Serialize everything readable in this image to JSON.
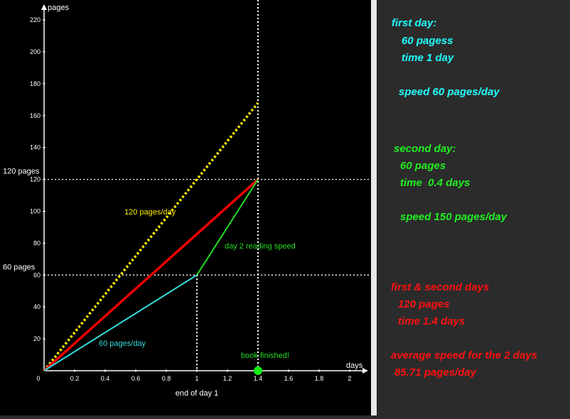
{
  "colors": {
    "background": "#000000",
    "axis": "#ffffff",
    "cyan": "#33dddd",
    "green": "#22dd22",
    "red": "#ee0000",
    "yellow": "#ffee00",
    "info_cyan": "#22ffff",
    "info_green": "#22ee22",
    "info_red": "#ff1111"
  },
  "chart_data": {
    "type": "line",
    "xlabel": "days",
    "ylabel": "pages",
    "xlim": [
      0,
      2.15
    ],
    "ylim": [
      0,
      225
    ],
    "x_ticks": [
      "0",
      "0.2",
      "0.4",
      "0.6",
      "0.8",
      "1",
      "1.2",
      "1.4",
      "1.6",
      "1.8",
      "2"
    ],
    "x_tick_values": [
      0,
      0.2,
      0.4,
      0.6,
      0.8,
      1,
      1.2,
      1.4,
      1.6,
      1.8,
      2
    ],
    "y_ticks": [
      "20",
      "40",
      "60",
      "80",
      "100",
      "120",
      "140",
      "160",
      "180",
      "200",
      "220"
    ],
    "y_tick_values": [
      20,
      40,
      60,
      80,
      100,
      120,
      140,
      160,
      180,
      200,
      220
    ],
    "series": [
      {
        "name": "60 pages/day",
        "color_key": "cyan",
        "style": "solid",
        "x": [
          0,
          1
        ],
        "y": [
          0,
          60
        ]
      },
      {
        "name": "day 2 reading speed",
        "color_key": "green",
        "style": "solid",
        "x": [
          1,
          1.4
        ],
        "y": [
          60,
          120
        ]
      },
      {
        "color_key": "red",
        "style": "solid",
        "x": [
          0,
          1.4
        ],
        "y": [
          0,
          120
        ]
      },
      {
        "name": "120 pages/day",
        "color_key": "yellow",
        "style": "dotted",
        "x": [
          0,
          1.4
        ],
        "y": [
          0,
          168
        ]
      }
    ],
    "reference_lines": {
      "horizontal": [
        {
          "y": 60,
          "label": "60 pages"
        },
        {
          "y": 120,
          "label": "120 pages"
        }
      ],
      "vertical": [
        {
          "x": 1,
          "label": "end of day 1"
        },
        {
          "x": 1.4
        }
      ]
    },
    "annotations": {
      "book_finished": {
        "x": 1.4,
        "y": 0,
        "label": "book finished!"
      }
    }
  },
  "info": {
    "first_day": {
      "heading": "first day:",
      "pages": "60 pagess",
      "time": "time 1 day",
      "speed": "speed 60 pages/day"
    },
    "second_day": {
      "heading": "second day:",
      "pages": "60 pages",
      "time": "time  0.4 days",
      "speed": "speed 150 pages/day"
    },
    "both_days": {
      "heading": "first & second days",
      "pages": "120 pages",
      "time": "time 1.4 days",
      "avg_heading": "average speed for the 2 days",
      "avg_value": "85.71 pages/day"
    }
  }
}
